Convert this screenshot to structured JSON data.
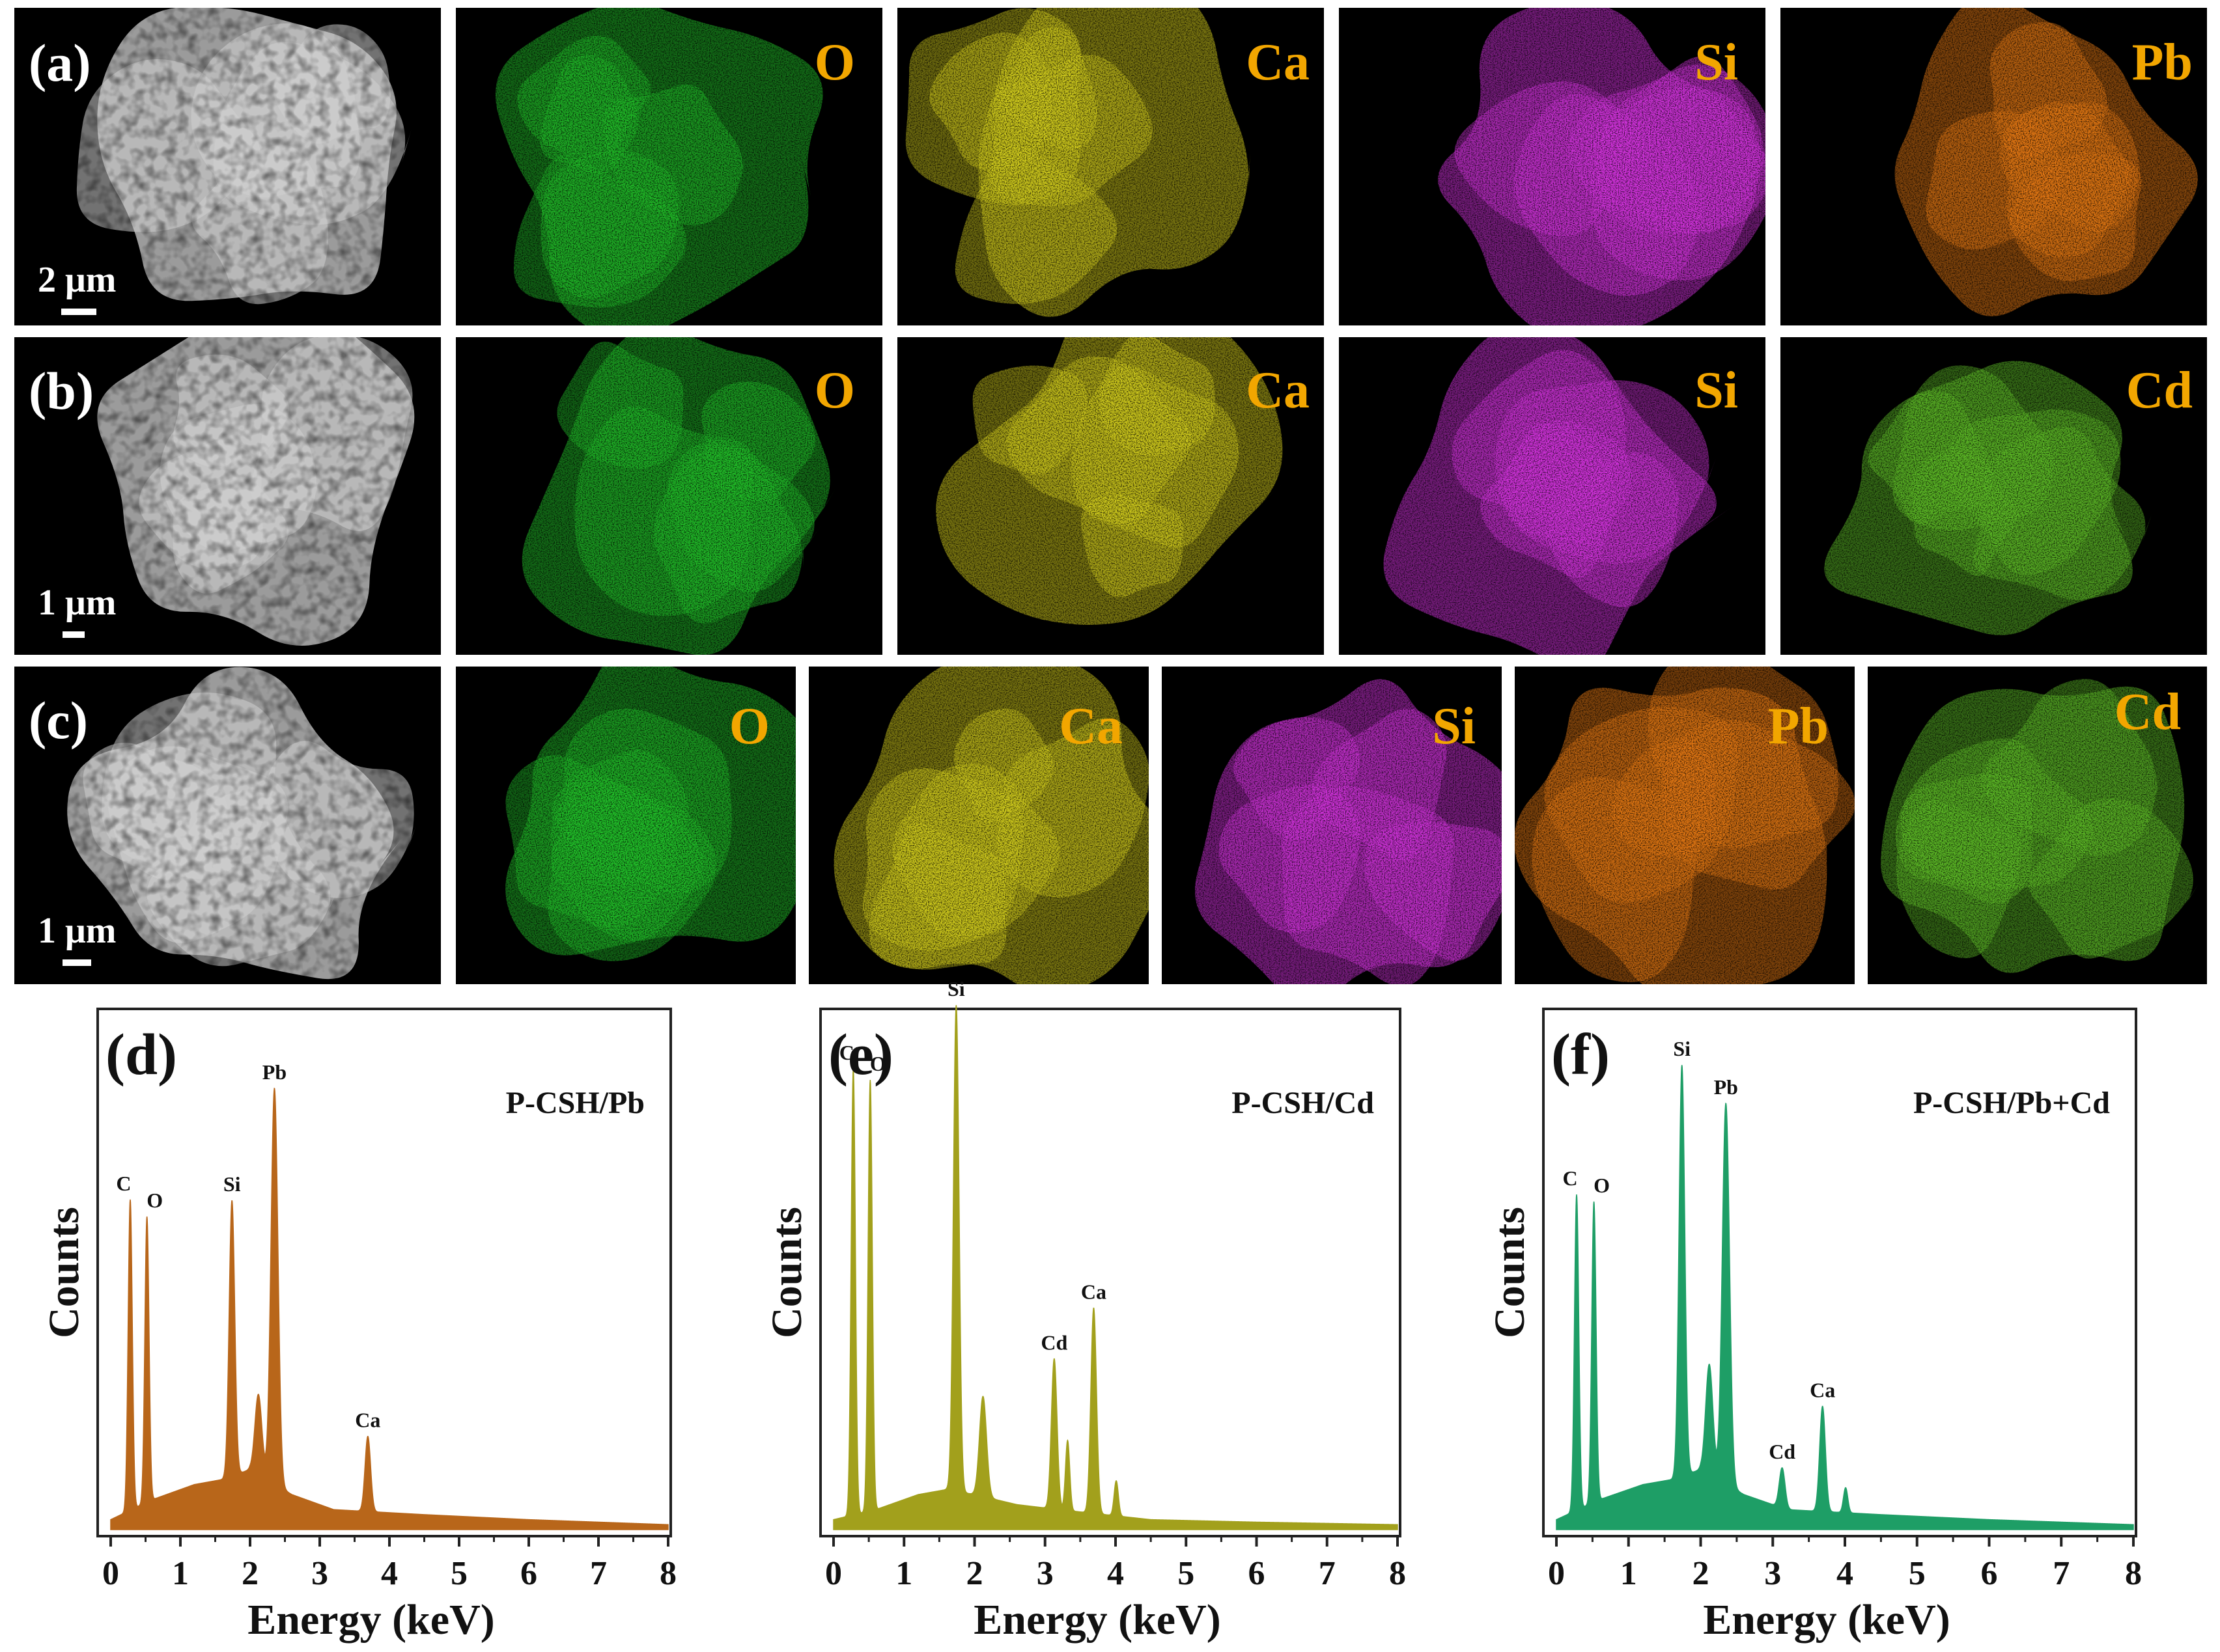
{
  "map_rows": [
    {
      "panel": "(a)",
      "scale_bar": "2 μm",
      "maps": [
        {
          "element": "O",
          "color": "#22c22a"
        },
        {
          "element": "Ca",
          "color": "#d8d21e"
        },
        {
          "element": "Si",
          "color": "#d633e0"
        },
        {
          "element": "Pb",
          "color": "#e87a14"
        }
      ]
    },
    {
      "panel": "(b)",
      "scale_bar": "1 μm",
      "maps": [
        {
          "element": "O",
          "color": "#22c22a"
        },
        {
          "element": "Ca",
          "color": "#d8d21e"
        },
        {
          "element": "Si",
          "color": "#d633e0"
        },
        {
          "element": "Cd",
          "color": "#5fc028"
        }
      ]
    },
    {
      "panel": "(c)",
      "scale_bar": "1 μm",
      "maps": [
        {
          "element": "O",
          "color": "#22c22a"
        },
        {
          "element": "Ca",
          "color": "#d8d21e"
        },
        {
          "element": "Si",
          "color": "#d633e0"
        },
        {
          "element": "Pb",
          "color": "#e87a14"
        },
        {
          "element": "Cd",
          "color": "#5fc028"
        }
      ]
    }
  ],
  "chart_data": [
    {
      "panel": "(d)",
      "type": "area",
      "title": "P-CSH/Pb",
      "xlabel": "Energy (keV)",
      "ylabel": "Counts",
      "xlim": [
        0,
        8
      ],
      "x_ticks": [
        "0",
        "1",
        "2",
        "3",
        "4",
        "5",
        "6",
        "7",
        "8"
      ],
      "color": "#b8661a",
      "baseline": 0.02,
      "background": [
        [
          0,
          0.02
        ],
        [
          0.6,
          0.06
        ],
        [
          1.2,
          0.09
        ],
        [
          1.6,
          0.1
        ],
        [
          2.0,
          0.12
        ],
        [
          2.6,
          0.07
        ],
        [
          3.2,
          0.04
        ],
        [
          4.5,
          0.03
        ],
        [
          6,
          0.02
        ],
        [
          8,
          0.01
        ]
      ],
      "peaks": [
        {
          "label": "C",
          "energy": 0.28,
          "height": 0.62,
          "width": 0.03
        },
        {
          "label": "O",
          "energy": 0.52,
          "height": 0.57,
          "width": 0.03
        },
        {
          "label": "Si",
          "energy": 1.74,
          "height": 0.55,
          "width": 0.04
        },
        {
          "label": "",
          "energy": 2.12,
          "height": 0.16,
          "width": 0.05
        },
        {
          "label": "Pb",
          "energy": 2.35,
          "height": 0.79,
          "width": 0.05
        },
        {
          "label": "Ca",
          "energy": 3.69,
          "height": 0.15,
          "width": 0.04
        }
      ]
    },
    {
      "panel": "(e)",
      "type": "area",
      "title": "P-CSH/Cd",
      "xlabel": "Energy (keV)",
      "ylabel": "Counts",
      "xlim": [
        0,
        8
      ],
      "x_ticks": [
        "0",
        "1",
        "2",
        "3",
        "4",
        "5",
        "6",
        "7",
        "8"
      ],
      "color": "#a2a01c",
      "baseline": 0.02,
      "background": [
        [
          0,
          0.02
        ],
        [
          0.6,
          0.04
        ],
        [
          1.2,
          0.07
        ],
        [
          1.6,
          0.08
        ],
        [
          2.0,
          0.07
        ],
        [
          2.6,
          0.05
        ],
        [
          3.2,
          0.04
        ],
        [
          4.5,
          0.02
        ],
        [
          6,
          0.015
        ],
        [
          8,
          0.01
        ]
      ],
      "peaks": [
        {
          "label": "C",
          "energy": 0.28,
          "height": 0.89,
          "width": 0.03
        },
        {
          "label": "O",
          "energy": 0.52,
          "height": 0.86,
          "width": 0.03
        },
        {
          "label": "Si",
          "energy": 1.74,
          "height": 0.97,
          "width": 0.04
        },
        {
          "label": "",
          "energy": 2.12,
          "height": 0.2,
          "width": 0.05
        },
        {
          "label": "Cd",
          "energy": 3.13,
          "height": 0.3,
          "width": 0.04
        },
        {
          "label": "",
          "energy": 3.32,
          "height": 0.14,
          "width": 0.03
        },
        {
          "label": "Ca",
          "energy": 3.69,
          "height": 0.41,
          "width": 0.04
        },
        {
          "label": "",
          "energy": 4.01,
          "height": 0.07,
          "width": 0.03
        }
      ]
    },
    {
      "panel": "(f)",
      "type": "area",
      "title": "P-CSH/Pb+Cd",
      "xlabel": "Energy (keV)",
      "ylabel": "Counts",
      "xlim": [
        0,
        8
      ],
      "x_ticks": [
        "0",
        "1",
        "2",
        "3",
        "4",
        "5",
        "6",
        "7",
        "8"
      ],
      "color": "#1e9e66",
      "baseline": 0.02,
      "background": [
        [
          0,
          0.02
        ],
        [
          0.6,
          0.06
        ],
        [
          1.2,
          0.09
        ],
        [
          1.6,
          0.1
        ],
        [
          2.0,
          0.12
        ],
        [
          2.6,
          0.07
        ],
        [
          3.2,
          0.04
        ],
        [
          4.5,
          0.03
        ],
        [
          6,
          0.02
        ],
        [
          8,
          0.01
        ]
      ],
      "peaks": [
        {
          "label": "C",
          "energy": 0.28,
          "height": 0.63,
          "width": 0.03
        },
        {
          "label": "O",
          "energy": 0.52,
          "height": 0.6,
          "width": 0.03
        },
        {
          "label": "Si",
          "energy": 1.74,
          "height": 0.82,
          "width": 0.04
        },
        {
          "label": "",
          "energy": 2.12,
          "height": 0.22,
          "width": 0.05
        },
        {
          "label": "Pb",
          "energy": 2.35,
          "height": 0.76,
          "width": 0.05
        },
        {
          "label": "Cd",
          "energy": 3.13,
          "height": 0.08,
          "width": 0.04
        },
        {
          "label": "Ca",
          "energy": 3.69,
          "height": 0.21,
          "width": 0.04
        },
        {
          "label": "",
          "energy": 4.01,
          "height": 0.05,
          "width": 0.03
        }
      ]
    }
  ]
}
